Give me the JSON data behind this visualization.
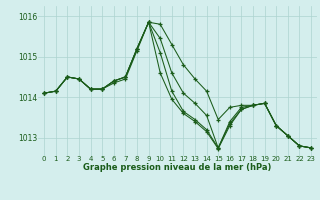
{
  "xlabel": "Graphe pression niveau de la mer (hPa)",
  "background_color": "#d4eeed",
  "grid_color": "#acd4d0",
  "line_color": "#1a5c1a",
  "ylim": [
    1012.55,
    1016.25
  ],
  "yticks": [
    1013,
    1014,
    1015,
    1016
  ],
  "xlim": [
    -0.5,
    23.5
  ],
  "xticks": [
    0,
    1,
    2,
    3,
    4,
    5,
    6,
    7,
    8,
    9,
    10,
    11,
    12,
    13,
    14,
    15,
    16,
    17,
    18,
    19,
    20,
    21,
    22,
    23
  ],
  "series": [
    [
      1014.1,
      1014.15,
      1014.5,
      1014.45,
      1014.2,
      1014.2,
      1014.4,
      1014.5,
      1015.2,
      1015.85,
      1015.8,
      1015.3,
      1014.8,
      1014.45,
      1014.15,
      1013.45,
      1013.75,
      1013.8,
      1013.8,
      1013.85,
      1013.3,
      1013.05,
      1012.8,
      1012.75
    ],
    [
      1014.1,
      1014.15,
      1014.5,
      1014.45,
      1014.2,
      1014.2,
      1014.4,
      1014.5,
      1015.2,
      1015.85,
      1015.45,
      1014.6,
      1014.1,
      1013.85,
      1013.55,
      1012.75,
      1013.35,
      1013.7,
      1013.8,
      1013.85,
      1013.3,
      1013.05,
      1012.8,
      1012.75
    ],
    [
      1014.1,
      1014.15,
      1014.5,
      1014.45,
      1014.2,
      1014.2,
      1014.4,
      1014.5,
      1015.2,
      1015.85,
      1015.1,
      1014.15,
      1013.65,
      1013.45,
      1013.2,
      1012.75,
      1013.4,
      1013.75,
      1013.8,
      1013.85,
      1013.3,
      1013.05,
      1012.8,
      1012.75
    ],
    [
      1014.1,
      1014.15,
      1014.5,
      1014.45,
      1014.2,
      1014.2,
      1014.35,
      1014.45,
      1015.15,
      1015.85,
      1014.6,
      1013.95,
      1013.6,
      1013.4,
      1013.15,
      1012.73,
      1013.3,
      1013.7,
      1013.8,
      1013.85,
      1013.3,
      1013.05,
      1012.8,
      1012.75
    ]
  ]
}
